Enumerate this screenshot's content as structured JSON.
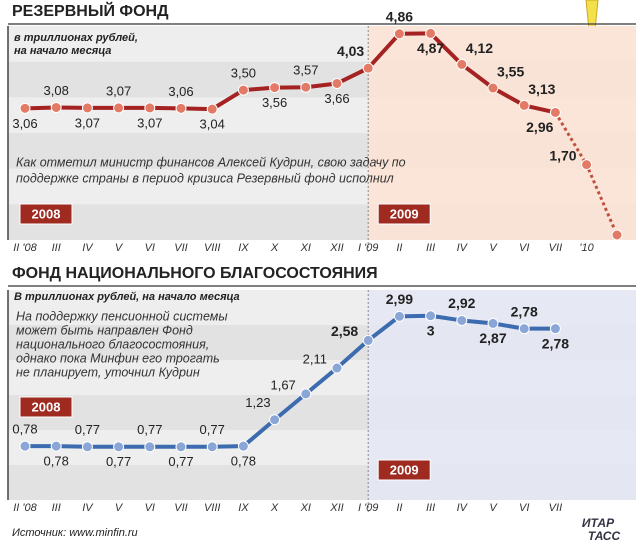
{
  "chart_data": [
    {
      "type": "line",
      "title": "РЕЗЕРВНЫЙ ФОНД",
      "subtitle": [
        "в триллионах рублей,",
        "на начало месяца"
      ],
      "annotation": [
        "Как отметил министр финансов Алексей Кудрин, свою задачу по",
        "поддержке страны в период кризиса Резервный фонд исполнил"
      ],
      "year_tags": [
        "2008",
        "2009"
      ],
      "categories": [
        "II '08",
        "III",
        "IV",
        "V",
        "VI",
        "VII",
        "VIII",
        "IX",
        "X",
        "XI",
        "XII",
        "I '09",
        "II",
        "III",
        "IV",
        "V",
        "VI",
        "VII",
        "'10",
        null
      ],
      "values": [
        3.06,
        3.08,
        3.07,
        3.07,
        3.07,
        3.06,
        3.04,
        3.5,
        3.56,
        3.57,
        3.66,
        4.03,
        4.86,
        4.87,
        4.12,
        3.55,
        3.13,
        2.96,
        1.7,
        0
      ],
      "value_labels": [
        "3,06",
        "3,08",
        "3,07",
        "3,07",
        "3,07",
        "3,06",
        "3,04",
        "3,50",
        "3,56",
        "3,57",
        "3,66",
        "4,03",
        "4,86",
        "4,87",
        "4,12",
        "3,55",
        "3,13",
        "2,96",
        "1,70",
        null
      ],
      "color": "#a52222",
      "marker_color": "#e27a66",
      "ylim": [
        0,
        5
      ]
    },
    {
      "type": "line",
      "title": "ФОНД НАЦИОНАЛЬНОГО БЛАГОСОСТОЯНИЯ",
      "subtitle": [
        "В триллионах рублей, на начало месяца"
      ],
      "annotation": [
        "На поддержку пенсионной системы",
        "может быть направлен Фонд",
        "национального благосостояния,",
        "однако пока Минфин его трогать",
        "не планирует, уточнил Кудрин"
      ],
      "year_tags": [
        "2008",
        "2009"
      ],
      "categories": [
        "II '08",
        "III",
        "IV",
        "V",
        "VI",
        "VII",
        "VIII",
        "IX",
        "X",
        "XI",
        "XII",
        "I '09",
        "II",
        "III",
        "IV",
        "V",
        "VI",
        "VII"
      ],
      "values": [
        0.78,
        0.78,
        0.77,
        0.77,
        0.77,
        0.77,
        0.77,
        0.78,
        1.23,
        1.67,
        2.11,
        2.58,
        2.99,
        3,
        2.92,
        2.87,
        2.78,
        2.78
      ],
      "value_labels": [
        "0,78",
        "0,78",
        "0,77",
        "0,77",
        "0,77",
        "0,77",
        "0,77",
        "0,78",
        "1,23",
        "1,67",
        "2,11",
        "2,58",
        "2,99",
        "3",
        "2,92",
        "2,87",
        "2,78",
        "2,78"
      ],
      "color": "#3d6bb0",
      "marker_color": "#8aa6d6",
      "ylim": [
        0,
        3.2
      ]
    }
  ],
  "footer": {
    "source": "Источник: www.minfin.ru",
    "logo": [
      "ИТАР",
      "ТАСС"
    ]
  }
}
